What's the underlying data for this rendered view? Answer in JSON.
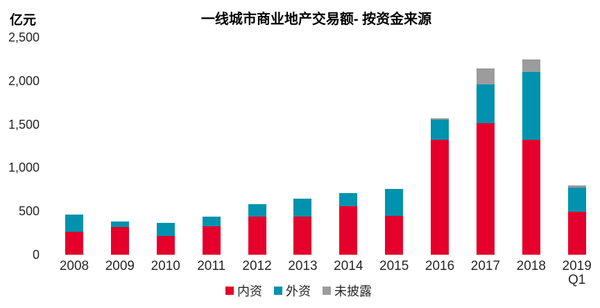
{
  "title": "一线城市商业地产交易额- 按资金来源",
  "unit_label": "亿元",
  "chart_data": {
    "type": "bar",
    "stacked": true,
    "title": "一线城市商业地产交易额- 按资金来源",
    "xlabel": "",
    "ylabel": "亿元",
    "ylim": [
      0,
      2500
    ],
    "y_tick_values": [
      0,
      500,
      1000,
      1500,
      2000,
      2500
    ],
    "y_ticks": [
      "0",
      "500",
      "1,000",
      "1,500",
      "2,000",
      "2,500"
    ],
    "grid": false,
    "legend_position": "bottom",
    "categories": [
      "2008",
      "2009",
      "2010",
      "2011",
      "2012",
      "2013",
      "2014",
      "2015",
      "2016",
      "2017",
      "2018",
      "2019\nQ1"
    ],
    "series": [
      {
        "name": "内资",
        "key": "domestic",
        "color": "#E4002B",
        "values": [
          265,
          320,
          215,
          330,
          435,
          435,
          555,
          445,
          1320,
          1515,
          1320,
          490
        ]
      },
      {
        "name": "外资",
        "key": "foreign",
        "color": "#0092AE",
        "values": [
          200,
          60,
          155,
          105,
          145,
          210,
          155,
          315,
          235,
          445,
          785,
          280
        ]
      },
      {
        "name": "未披露",
        "key": "undisclosed",
        "color": "#9C9C9C",
        "values": [
          0,
          0,
          0,
          0,
          0,
          0,
          0,
          0,
          10,
          185,
          140,
          30
        ]
      }
    ]
  }
}
